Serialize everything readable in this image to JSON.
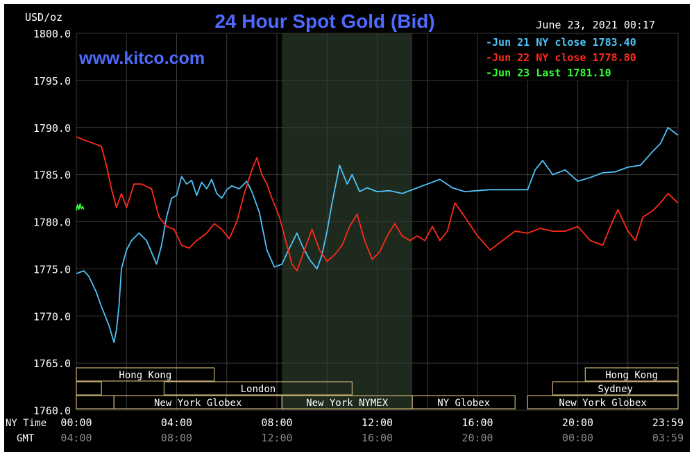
{
  "header": {
    "title": "24 Hour Spot Gold (Bid)",
    "unit_label": "USD/oz",
    "timestamp": "June 23, 2021 00:17",
    "watermark": "www.kitco.com"
  },
  "axis_labels": {
    "ny_time": "NY Time",
    "gmt": "GMT"
  },
  "colors": {
    "background": "#000000",
    "grid": "#3a3a3a",
    "series_jun21": "#4fc3f7",
    "series_jun22": "#ff2a1a",
    "series_jun23": "#33ff33",
    "title": "#4f6bff",
    "session_box": "#c8b273",
    "highlight_band": "#1e2a1e"
  },
  "sessions": [
    {
      "label": "Hong Kong",
      "start": 0,
      "end": 5.5
    },
    {
      "label": "",
      "start": 0,
      "end": 1.0
    },
    {
      "label": "London",
      "start": 3.5,
      "end": 11.0
    },
    {
      "label": "",
      "start": 0,
      "end": 1.5
    },
    {
      "label": "New York Globex",
      "start": 1.5,
      "end": 8.2
    },
    {
      "label": "New York NYMEX",
      "start": 8.2,
      "end": 13.4
    },
    {
      "label": "NY Globex",
      "start": 13.4,
      "end": 17.5
    },
    {
      "label": "Hong Kong",
      "start": 20.3,
      "end": 24.0
    },
    {
      "label": "Sydney",
      "start": 19.0,
      "end": 24.0
    },
    {
      "label": "New York Globex",
      "start": 18.0,
      "end": 24.0
    }
  ],
  "chart_data": {
    "type": "line",
    "title": "24 Hour Spot Gold (Bid)",
    "ylabel": "USD/oz",
    "ylim": [
      1760,
      1800
    ],
    "yticks": [
      "1760.0",
      "1765.0",
      "1770.0",
      "1775.0",
      "1780.0",
      "1785.0",
      "1790.0",
      "1795.0",
      "1800.0"
    ],
    "xlim": [
      0,
      24
    ],
    "xticks_ny": [
      "00:00",
      "04:00",
      "08:00",
      "12:00",
      "16:00",
      "20:00",
      "23:59"
    ],
    "xticks_gmt": [
      "04:00",
      "08:00",
      "12:00",
      "16:00",
      "20:00",
      "00:00",
      "03:59"
    ],
    "highlight_band_hours": [
      8.2,
      13.4
    ],
    "legend_position": "top-right",
    "series": [
      {
        "name": "Jun 21 NY close 1783.40",
        "color": "#4fc3f7",
        "x": [
          0,
          0.3,
          0.5,
          0.8,
          1.0,
          1.3,
          1.5,
          1.6,
          1.7,
          1.8,
          2.0,
          2.2,
          2.5,
          2.8,
          3.2,
          3.4,
          3.6,
          3.8,
          4.0,
          4.2,
          4.4,
          4.6,
          4.8,
          5.0,
          5.2,
          5.4,
          5.6,
          5.8,
          6.0,
          6.2,
          6.5,
          6.8,
          7.0,
          7.3,
          7.6,
          7.9,
          8.2,
          8.5,
          8.8,
          9.0,
          9.3,
          9.6,
          9.8,
          10.0,
          10.2,
          10.5,
          10.8,
          11.0,
          11.3,
          11.6,
          12.0,
          12.5,
          13.0,
          13.5,
          14.0,
          14.5,
          15.0,
          15.5,
          16.0,
          16.5,
          17.0,
          17.5,
          18.0,
          18.3,
          18.6,
          19.0,
          19.5,
          20.0,
          20.5,
          21.0,
          21.5,
          22.0,
          22.5,
          23.0,
          23.3,
          23.6,
          23.99
        ],
        "y": [
          1774.5,
          1774.8,
          1774.2,
          1772.5,
          1771.0,
          1769.0,
          1767.2,
          1768.5,
          1771.0,
          1775.0,
          1777.0,
          1778.0,
          1778.8,
          1778.0,
          1775.5,
          1777.5,
          1780.5,
          1782.5,
          1782.8,
          1784.8,
          1784.0,
          1784.4,
          1782.8,
          1784.2,
          1783.5,
          1784.5,
          1783.0,
          1782.5,
          1783.4,
          1783.8,
          1783.5,
          1784.3,
          1783.2,
          1781.0,
          1777.0,
          1775.2,
          1775.5,
          1777.2,
          1778.8,
          1777.5,
          1776.0,
          1775.0,
          1776.5,
          1779.0,
          1782.0,
          1786.0,
          1784.0,
          1785.0,
          1783.2,
          1783.6,
          1783.2,
          1783.3,
          1783.0,
          1783.5,
          1784.0,
          1784.5,
          1783.6,
          1783.2,
          1783.3,
          1783.4,
          1783.4,
          1783.4,
          1783.4,
          1785.5,
          1786.5,
          1785.0,
          1785.5,
          1784.3,
          1784.7,
          1785.2,
          1785.3,
          1785.8,
          1786.0,
          1787.5,
          1788.3,
          1790.0,
          1789.2
        ]
      },
      {
        "name": "Jun 22 NY close 1778.80",
        "color": "#ff2a1a",
        "x": [
          0,
          0.5,
          0.8,
          1.0,
          1.2,
          1.4,
          1.6,
          1.8,
          2.0,
          2.3,
          2.6,
          3.0,
          3.3,
          3.6,
          3.9,
          4.2,
          4.5,
          4.8,
          5.2,
          5.5,
          5.8,
          6.1,
          6.4,
          6.7,
          7.0,
          7.2,
          7.4,
          7.6,
          7.8,
          8.1,
          8.4,
          8.6,
          8.8,
          9.1,
          9.4,
          9.7,
          10.0,
          10.3,
          10.6,
          10.9,
          11.2,
          11.5,
          11.8,
          12.1,
          12.4,
          12.7,
          13.0,
          13.3,
          13.6,
          13.9,
          14.2,
          14.5,
          14.8,
          15.1,
          15.5,
          16.0,
          16.5,
          17.0,
          17.5,
          18.0,
          18.5,
          19.0,
          19.5,
          20.0,
          20.5,
          21.0,
          21.3,
          21.6,
          22.0,
          22.3,
          22.6,
          23.0,
          23.3,
          23.6,
          23.99
        ],
        "y": [
          1789.0,
          1788.5,
          1788.2,
          1788.0,
          1786.0,
          1783.5,
          1781.5,
          1783.0,
          1781.5,
          1784.0,
          1784.0,
          1783.5,
          1780.5,
          1779.5,
          1779.2,
          1777.5,
          1777.2,
          1778.0,
          1778.8,
          1779.8,
          1779.2,
          1778.2,
          1780.0,
          1783.0,
          1785.5,
          1786.8,
          1785.0,
          1784.0,
          1782.5,
          1780.5,
          1777.5,
          1775.5,
          1774.8,
          1777.0,
          1779.2,
          1777.0,
          1775.8,
          1776.5,
          1777.5,
          1779.5,
          1780.8,
          1778.0,
          1776.0,
          1776.8,
          1778.5,
          1779.8,
          1778.5,
          1778.0,
          1778.5,
          1778.0,
          1779.5,
          1778.0,
          1779.0,
          1782.0,
          1780.5,
          1778.5,
          1777.0,
          1778.0,
          1779.0,
          1778.8,
          1779.3,
          1779.0,
          1779.0,
          1779.5,
          1778.0,
          1777.5,
          1779.5,
          1781.3,
          1779.0,
          1778.0,
          1780.5,
          1781.2,
          1782.0,
          1783.0,
          1782.0
        ]
      },
      {
        "name": "Jun 23 Last 1781.10",
        "color": "#33ff33",
        "x": [
          0,
          0.05,
          0.1,
          0.15,
          0.2,
          0.25,
          0.3
        ],
        "y": [
          1781.2,
          1781.8,
          1781.3,
          1781.9,
          1781.4,
          1781.6,
          1781.3
        ]
      }
    ]
  }
}
